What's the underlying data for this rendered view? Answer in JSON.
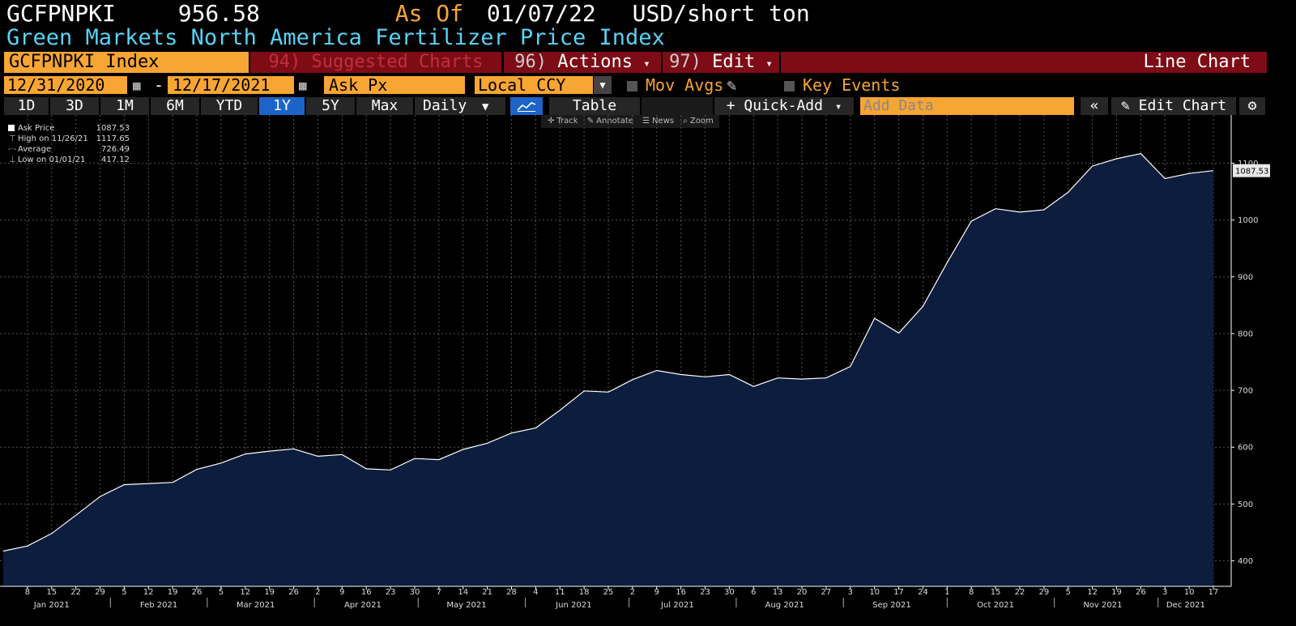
{
  "header": {
    "ticker": "GCFPNPKI",
    "price": "956.58",
    "as_of_label": "As Of",
    "as_of_date": "01/07/22",
    "unit": "USD/short ton",
    "subtitle": "Green Markets North America Fertilizer Price Index"
  },
  "menu": {
    "security": "GCFPNPKI Index",
    "suggested_num": "94)",
    "suggested": "Suggested Charts",
    "actions_num": "96)",
    "actions": "Actions",
    "edit_num": "97)",
    "edit": "Edit",
    "chart_type": "Line Chart"
  },
  "controls": {
    "start_date": "12/31/2020",
    "dash": "-",
    "end_date": "12/17/2021",
    "field": "Ask Px",
    "currency": "Local CCY",
    "mov_avgs": "Mov Avgs",
    "key_events": "Key Events"
  },
  "toolbar": {
    "ranges": [
      "1D",
      "3D",
      "1M",
      "6M",
      "YTD",
      "1Y",
      "5Y",
      "Max"
    ],
    "selected_range": "1Y",
    "frequency": "Daily",
    "table": "Table",
    "quick_add": "+ Quick-Add",
    "add_data_placeholder": "Add Data",
    "edit_chart": "Edit Chart"
  },
  "chart_tools": [
    "Track",
    "Annotate",
    "News",
    "Zoom"
  ],
  "legend": [
    {
      "label": "Ask Price",
      "value": "1087.53"
    },
    {
      "label": "High on 11/26/21",
      "value": "1117.65"
    },
    {
      "label": "Average",
      "value": "726.49"
    },
    {
      "label": "Low on 01/01/21",
      "value": "417.12"
    }
  ],
  "colors": {
    "line": "#ffffff",
    "fill": "#0c1d3d",
    "accent_orange": "#f7a533",
    "menu_red": "#7d0c16",
    "subtitle_cyan": "#5ad2f5",
    "grid": "#555555"
  },
  "chart_data": {
    "type": "area",
    "title": "Green Markets North America Fertilizer Price Index",
    "ylabel": "",
    "xlabel": "",
    "ylim": [
      355,
      1185
    ],
    "yticks": [
      400,
      500,
      600,
      700,
      800,
      900,
      1000,
      1100
    ],
    "last_value_label": "1087.53",
    "x": [
      "2021-01-01",
      "2021-01-08",
      "2021-01-15",
      "2021-01-22",
      "2021-01-29",
      "2021-02-05",
      "2021-02-12",
      "2021-02-19",
      "2021-02-26",
      "2021-03-05",
      "2021-03-12",
      "2021-03-19",
      "2021-03-26",
      "2021-04-02",
      "2021-04-09",
      "2021-04-16",
      "2021-04-23",
      "2021-04-30",
      "2021-05-07",
      "2021-05-14",
      "2021-05-21",
      "2021-05-28",
      "2021-06-04",
      "2021-06-11",
      "2021-06-18",
      "2021-06-25",
      "2021-07-02",
      "2021-07-09",
      "2021-07-16",
      "2021-07-23",
      "2021-07-30",
      "2021-08-06",
      "2021-08-13",
      "2021-08-20",
      "2021-08-27",
      "2021-09-03",
      "2021-09-10",
      "2021-09-17",
      "2021-09-24",
      "2021-10-01",
      "2021-10-08",
      "2021-10-15",
      "2021-10-22",
      "2021-10-29",
      "2021-11-05",
      "2021-11-12",
      "2021-11-19",
      "2021-11-26",
      "2021-12-03",
      "2021-12-10",
      "2021-12-17"
    ],
    "series": [
      {
        "name": "Ask Price",
        "values": [
          417,
          426,
          448,
          480,
          513,
          534,
          536,
          538,
          561,
          572,
          588,
          593,
          597,
          584,
          587,
          562,
          560,
          580,
          578,
          596,
          607,
          625,
          634,
          665,
          699,
          697,
          719,
          735,
          728,
          724,
          728,
          707,
          722,
          720,
          722,
          742,
          827,
          801,
          848,
          925,
          998,
          1020,
          1014,
          1018,
          1049,
          1095,
          1108,
          1117,
          1073,
          1082,
          1087
        ]
      }
    ],
    "xtick_labels": [
      "8",
      "15",
      "22",
      "29",
      "5",
      "12",
      "19",
      "26",
      "5",
      "12",
      "19",
      "26",
      "2",
      "9",
      "16",
      "23",
      "30",
      "7",
      "14",
      "21",
      "28",
      "4",
      "11",
      "18",
      "25",
      "2",
      "9",
      "16",
      "23",
      "30",
      "6",
      "13",
      "20",
      "27",
      "3",
      "10",
      "17",
      "24",
      "1",
      "8",
      "15",
      "22",
      "29",
      "5",
      "12",
      "19",
      "26",
      "3",
      "10",
      "17"
    ],
    "month_labels": [
      {
        "label": "Jan 2021",
        "at": "2021-01-15"
      },
      {
        "label": "Feb 2021",
        "at": "2021-02-15"
      },
      {
        "label": "Mar 2021",
        "at": "2021-03-15"
      },
      {
        "label": "Apr 2021",
        "at": "2021-04-15"
      },
      {
        "label": "May 2021",
        "at": "2021-05-15"
      },
      {
        "label": "Jun 2021",
        "at": "2021-06-15"
      },
      {
        "label": "Jul 2021",
        "at": "2021-07-15"
      },
      {
        "label": "Aug 2021",
        "at": "2021-08-15"
      },
      {
        "label": "Sep 2021",
        "at": "2021-09-15"
      },
      {
        "label": "Oct 2021",
        "at": "2021-10-15"
      },
      {
        "label": "Nov 2021",
        "at": "2021-11-15"
      },
      {
        "label": "Dec 2021",
        "at": "2021-12-09"
      }
    ],
    "month_starts": [
      "2021-02-01",
      "2021-03-01",
      "2021-04-01",
      "2021-05-01",
      "2021-06-01",
      "2021-07-01",
      "2021-08-01",
      "2021-09-01",
      "2021-10-01",
      "2021-11-01",
      "2021-12-01"
    ],
    "grid": true,
    "legend_position": "top-left"
  }
}
